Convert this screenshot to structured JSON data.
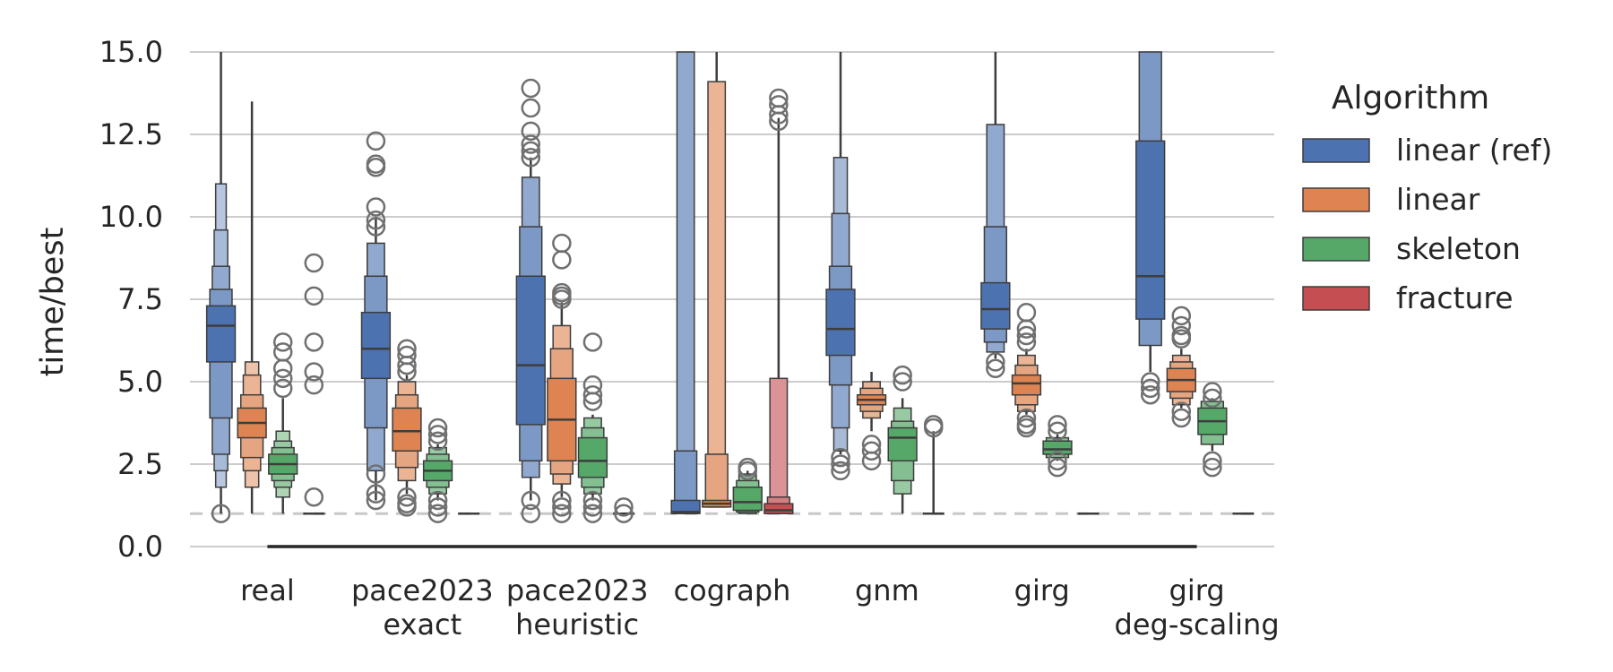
{
  "chart_data": {
    "type": "boxen",
    "title": "",
    "xlabel": "",
    "ylabel": "time/best",
    "ylim": [
      0,
      15
    ],
    "yticks": [
      "0.0",
      "2.5",
      "5.0",
      "7.5",
      "10.0",
      "12.5",
      "15.0"
    ],
    "reference_line": 1.0,
    "grid": true,
    "legend": {
      "title": "Algorithm",
      "placement": "right",
      "entries": [
        "linear (ref)",
        "linear",
        "skeleton",
        "fracture"
      ]
    },
    "colors": {
      "linear (ref)": "#4c72b0",
      "linear": "#dd8452",
      "skeleton": "#55a868",
      "fracture": "#c44e52"
    },
    "categories": [
      {
        "line1": "real",
        "line2": ""
      },
      {
        "line1": "pace2023",
        "line2": "exact"
      },
      {
        "line1": "pace2023",
        "line2": "heuristic"
      },
      {
        "line1": "cograph",
        "line2": ""
      },
      {
        "line1": "gnm",
        "line2": ""
      },
      {
        "line1": "girg",
        "line2": ""
      },
      {
        "line1": "girg",
        "line2": "deg-scaling"
      }
    ],
    "series": [
      {
        "name": "linear (ref)",
        "boxes": [
          {
            "median": 6.7,
            "levels": [
              [
                5.6,
                7.3
              ],
              [
                3.9,
                7.8
              ],
              [
                2.8,
                8.5
              ],
              [
                2.3,
                9.6
              ],
              [
                1.8,
                11.0
              ]
            ],
            "whisker": [
              1.0,
              15.0
            ],
            "outliers": [
              1.0
            ]
          },
          {
            "median": 6.0,
            "levels": [
              [
                5.1,
                7.1
              ],
              [
                3.6,
                8.2
              ],
              [
                2.3,
                9.2
              ]
            ],
            "whisker": [
              1.4,
              10.0
            ],
            "outliers": [
              12.3,
              11.6,
              11.5,
              10.3,
              9.9,
              9.7,
              2.2,
              1.6,
              1.4
            ]
          },
          {
            "median": 5.5,
            "levels": [
              [
                3.7,
                8.2
              ],
              [
                2.6,
                9.7
              ],
              [
                2.1,
                11.2
              ]
            ],
            "whisker": [
              1.4,
              11.8
            ],
            "outliers": [
              13.9,
              13.3,
              12.6,
              12.2,
              12.0,
              11.8,
              1.4,
              1.0
            ]
          },
          {
            "median": 1.05,
            "levels": [
              [
                1.0,
                1.4
              ],
              [
                1.0,
                2.9
              ],
              [
                1.0,
                15.0
              ]
            ],
            "whisker": [
              1.0,
              15.0
            ],
            "outliers": []
          },
          {
            "median": 6.6,
            "levels": [
              [
                5.8,
                7.8
              ],
              [
                4.9,
                8.5
              ],
              [
                3.6,
                10.1
              ],
              [
                2.9,
                11.8
              ]
            ],
            "whisker": [
              2.8,
              15.0
            ],
            "outliers": [
              2.7,
              2.5,
              2.3
            ]
          },
          {
            "median": 7.2,
            "levels": [
              [
                6.6,
                8.0
              ],
              [
                6.2,
                9.7
              ],
              [
                5.9,
                12.8
              ]
            ],
            "whisker": [
              5.7,
              15.0
            ],
            "outliers": [
              5.6,
              5.4
            ]
          },
          {
            "median": 8.2,
            "levels": [
              [
                6.9,
                12.3
              ],
              [
                6.1,
                15.0
              ]
            ],
            "whisker": [
              5.3,
              15.0
            ],
            "outliers": [
              5.0,
              4.8,
              4.6
            ]
          }
        ]
      },
      {
        "name": "linear",
        "boxes": [
          {
            "median": 3.75,
            "levels": [
              [
                3.3,
                4.2
              ],
              [
                2.7,
                4.6
              ],
              [
                2.3,
                5.2
              ],
              [
                1.8,
                5.6
              ]
            ],
            "whisker": [
              1.0,
              13.5
            ],
            "outliers": []
          },
          {
            "median": 3.5,
            "levels": [
              [
                2.9,
                4.2
              ],
              [
                2.4,
                4.6
              ],
              [
                2.0,
                5.0
              ]
            ],
            "whisker": [
              1.6,
              5.2
            ],
            "outliers": [
              6.0,
              5.8,
              5.5,
              5.3,
              1.5,
              1.3,
              1.2
            ]
          },
          {
            "median": 3.85,
            "levels": [
              [
                2.6,
                5.1
              ],
              [
                2.2,
                6.0
              ],
              [
                1.9,
                6.7
              ]
            ],
            "whisker": [
              1.5,
              7.4
            ],
            "outliers": [
              9.2,
              8.7,
              7.7,
              7.6,
              7.5,
              1.4,
              1.2,
              1.0
            ]
          },
          {
            "median": 1.3,
            "levels": [
              [
                1.2,
                1.4
              ],
              [
                1.2,
                2.8
              ],
              [
                1.2,
                14.1
              ]
            ],
            "whisker": [
              1.2,
              15.0
            ],
            "outliers": []
          },
          {
            "median": 4.45,
            "levels": [
              [
                4.3,
                4.6
              ],
              [
                4.1,
                4.8
              ],
              [
                3.9,
                5.0
              ]
            ],
            "whisker": [
              3.5,
              5.3
            ],
            "outliers": [
              3.1,
              2.9,
              2.6
            ]
          },
          {
            "median": 4.95,
            "levels": [
              [
                4.6,
                5.2
              ],
              [
                4.3,
                5.5
              ],
              [
                4.1,
                5.8
              ]
            ],
            "whisker": [
              4.0,
              6.0
            ],
            "outliers": [
              7.1,
              6.6,
              6.4,
              6.2,
              3.9,
              3.7,
              3.6
            ]
          },
          {
            "median": 5.05,
            "levels": [
              [
                4.7,
                5.4
              ],
              [
                4.5,
                5.6
              ],
              [
                4.3,
                5.8
              ]
            ],
            "whisker": [
              4.2,
              6.0
            ],
            "outliers": [
              7.0,
              6.7,
              6.4,
              6.3,
              4.1,
              3.9
            ]
          }
        ]
      },
      {
        "name": "skeleton",
        "boxes": [
          {
            "median": 2.5,
            "levels": [
              [
                2.2,
                2.8
              ],
              [
                2.0,
                3.0
              ],
              [
                1.8,
                3.2
              ],
              [
                1.5,
                3.5
              ]
            ],
            "whisker": [
              1.0,
              4.5
            ],
            "outliers": [
              6.2,
              5.9,
              5.4,
              5.1,
              4.8
            ]
          },
          {
            "median": 2.3,
            "levels": [
              [
                2.0,
                2.6
              ],
              [
                1.8,
                2.8
              ],
              [
                1.6,
                3.0
              ]
            ],
            "whisker": [
              1.4,
              3.1
            ],
            "outliers": [
              3.6,
              3.4,
              3.2,
              1.4,
              1.2,
              1.0
            ]
          },
          {
            "median": 2.6,
            "levels": [
              [
                2.1,
                3.3
              ],
              [
                1.8,
                3.6
              ],
              [
                1.6,
                3.9
              ]
            ],
            "whisker": [
              1.4,
              4.0
            ],
            "outliers": [
              6.2,
              4.9,
              4.6,
              4.4,
              1.4,
              1.2,
              1.0
            ]
          },
          {
            "median": 1.35,
            "levels": [
              [
                1.1,
                1.8
              ],
              [
                1.05,
                2.0
              ],
              [
                1.0,
                2.2
              ]
            ],
            "whisker": [
              1.0,
              2.3
            ],
            "outliers": [
              2.4,
              2.3
            ]
          },
          {
            "median": 3.3,
            "levels": [
              [
                2.6,
                3.6
              ],
              [
                2.0,
                3.8
              ],
              [
                1.6,
                4.2
              ]
            ],
            "whisker": [
              1.0,
              4.5
            ],
            "outliers": [
              5.2,
              5.0
            ]
          },
          {
            "median": 2.95,
            "levels": [
              [
                2.8,
                3.2
              ],
              [
                2.7,
                3.3
              ]
            ],
            "whisker": [
              2.6,
              3.4
            ],
            "outliers": [
              3.7,
              3.5,
              2.6,
              2.4
            ]
          },
          {
            "median": 3.8,
            "levels": [
              [
                3.4,
                4.2
              ],
              [
                3.1,
                4.4
              ]
            ],
            "whisker": [
              2.9,
              4.5
            ],
            "outliers": [
              4.7,
              4.5,
              2.6,
              2.4
            ]
          }
        ]
      },
      {
        "name": "fracture",
        "boxes": [
          {
            "median": 1.0,
            "levels": [],
            "whisker": [
              1.0,
              1.0
            ],
            "outliers": [
              8.6,
              7.6,
              6.2,
              5.3,
              4.9,
              1.5
            ]
          },
          {
            "median": 1.0,
            "levels": [],
            "whisker": [
              1.0,
              1.0
            ],
            "outliers": []
          },
          {
            "median": 1.0,
            "levels": [],
            "whisker": [
              1.0,
              1.0
            ],
            "outliers": [
              1.2,
              1.0
            ]
          },
          {
            "median": 1.1,
            "levels": [
              [
                1.0,
                1.3
              ],
              [
                1.0,
                1.5
              ],
              [
                1.0,
                5.1
              ]
            ],
            "whisker": [
              1.0,
              13.0
            ],
            "outliers": [
              13.6,
              13.4,
              13.1,
              12.9
            ]
          },
          {
            "median": 1.0,
            "levels": [],
            "whisker": [
              1.0,
              3.5
            ],
            "outliers": [
              3.7,
              3.6
            ]
          },
          {
            "median": 1.0,
            "levels": [],
            "whisker": [
              1.0,
              1.0
            ],
            "outliers": []
          },
          {
            "median": 1.0,
            "levels": [],
            "whisker": [
              1.0,
              1.0
            ],
            "outliers": []
          }
        ]
      }
    ]
  }
}
